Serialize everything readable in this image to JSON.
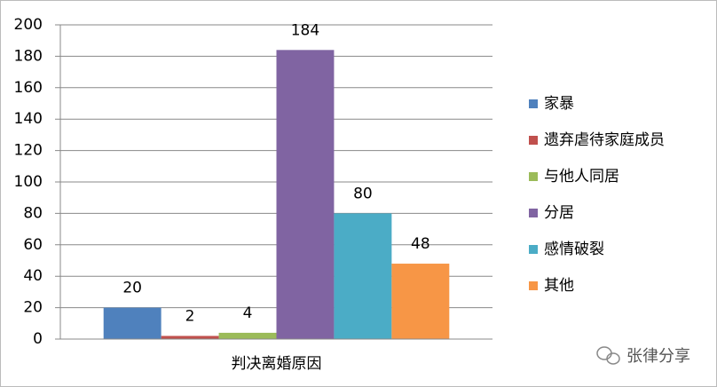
{
  "chart_data": {
    "type": "bar",
    "categories": [
      "判决离婚原因"
    ],
    "series": [
      {
        "name": "家暴",
        "color": "#4f81bd",
        "values": [
          20
        ]
      },
      {
        "name": "遗弃虐待家庭成员",
        "color": "#c0504d",
        "values": [
          2
        ]
      },
      {
        "name": "与他人同居",
        "color": "#9bbb59",
        "values": [
          4
        ]
      },
      {
        "name": "分居",
        "color": "#8064a2",
        "values": [
          184
        ]
      },
      {
        "name": "感情破裂",
        "color": "#4bacc6",
        "values": [
          80
        ]
      },
      {
        "name": "其他",
        "color": "#f79646",
        "values": [
          48
        ]
      }
    ],
    "ylim": [
      0,
      200
    ],
    "yticks": [
      0,
      20,
      40,
      60,
      80,
      100,
      120,
      140,
      160,
      180,
      200
    ],
    "grid": true,
    "legend": "right",
    "watermark": "张律分享"
  }
}
